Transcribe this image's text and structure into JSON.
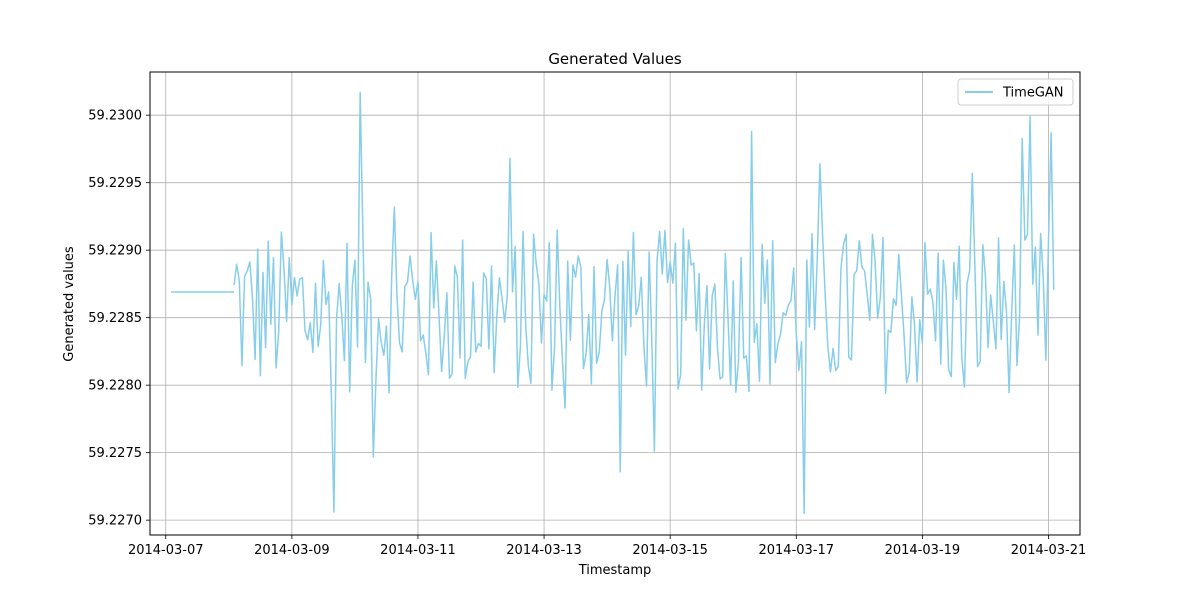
{
  "chart_data": {
    "type": "line",
    "title": "Generated Values",
    "xlabel": "Timestamp",
    "ylabel": "Generated values",
    "x_range": [
      "2014-03-06T18:00",
      "2014-03-21T12:00"
    ],
    "ylim": [
      59.22689,
      59.23032
    ],
    "x_ticks": [
      "2014-03-07",
      "2014-03-09",
      "2014-03-11",
      "2014-03-13",
      "2014-03-15",
      "2014-03-17",
      "2014-03-19",
      "2014-03-21"
    ],
    "y_ticks": [
      "59.2270",
      "59.2275",
      "59.2280",
      "59.2285",
      "59.2290",
      "59.2295",
      "59.2300"
    ],
    "grid": true,
    "legend": {
      "position": "top-right",
      "entries": [
        "TimeGAN"
      ]
    },
    "series": [
      {
        "name": "TimeGAN",
        "color": "#87CEEB",
        "flat_segment": {
          "x_start": "2014-03-07T02:00",
          "x_end": "2014-03-08T02:00",
          "y": 59.22869
        },
        "oscillating_segment": {
          "x_start": "2014-03-08T02:00",
          "x_end": "2014-03-21T02:00",
          "center": 59.22855,
          "typical_low": 59.2279,
          "typical_high": 59.2292,
          "min": 59.22706,
          "max": 59.23017
        },
        "notable_points": [
          {
            "x": "2014-03-09T16:00",
            "y": 59.22706
          },
          {
            "x": "2014-03-10T02:00",
            "y": 59.23017
          },
          {
            "x": "2014-03-17T03:00",
            "y": 59.22705
          },
          {
            "x": "2014-03-20T17:00",
            "y": 59.22999
          },
          {
            "x": "2014-03-16T07:00",
            "y": 59.22988
          },
          {
            "x": "2014-03-21T01:00",
            "y": 59.22987
          }
        ]
      }
    ]
  }
}
